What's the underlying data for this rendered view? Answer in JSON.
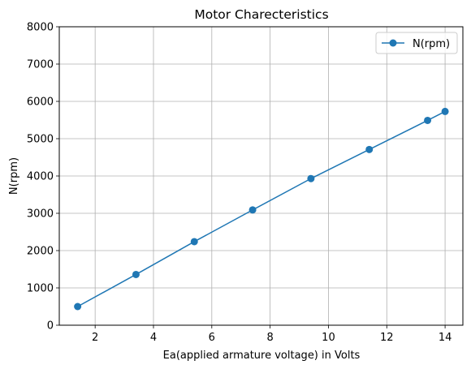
{
  "chart_data": {
    "type": "line",
    "title": "Motor Charecteristics",
    "xlabel": "Ea(applied armature voltage) in Volts",
    "ylabel": "N(rpm)",
    "xlim": [
      0.77,
      14.61
    ],
    "ylim": [
      0,
      8000
    ],
    "xticks": [
      2,
      4,
      6,
      8,
      10,
      12,
      14
    ],
    "yticks": [
      0,
      1000,
      2000,
      3000,
      4000,
      5000,
      6000,
      7000,
      8000
    ],
    "grid": true,
    "legend_position": "top-right",
    "series": [
      {
        "name": "N(rpm)",
        "color": "#1f77b4",
        "marker": "circle",
        "x": [
          1.4,
          3.4,
          5.4,
          7.4,
          9.4,
          11.4,
          13.4,
          14.0
        ],
        "y": [
          500,
          1360,
          2240,
          3090,
          3930,
          4710,
          5490,
          5730
        ]
      }
    ]
  }
}
